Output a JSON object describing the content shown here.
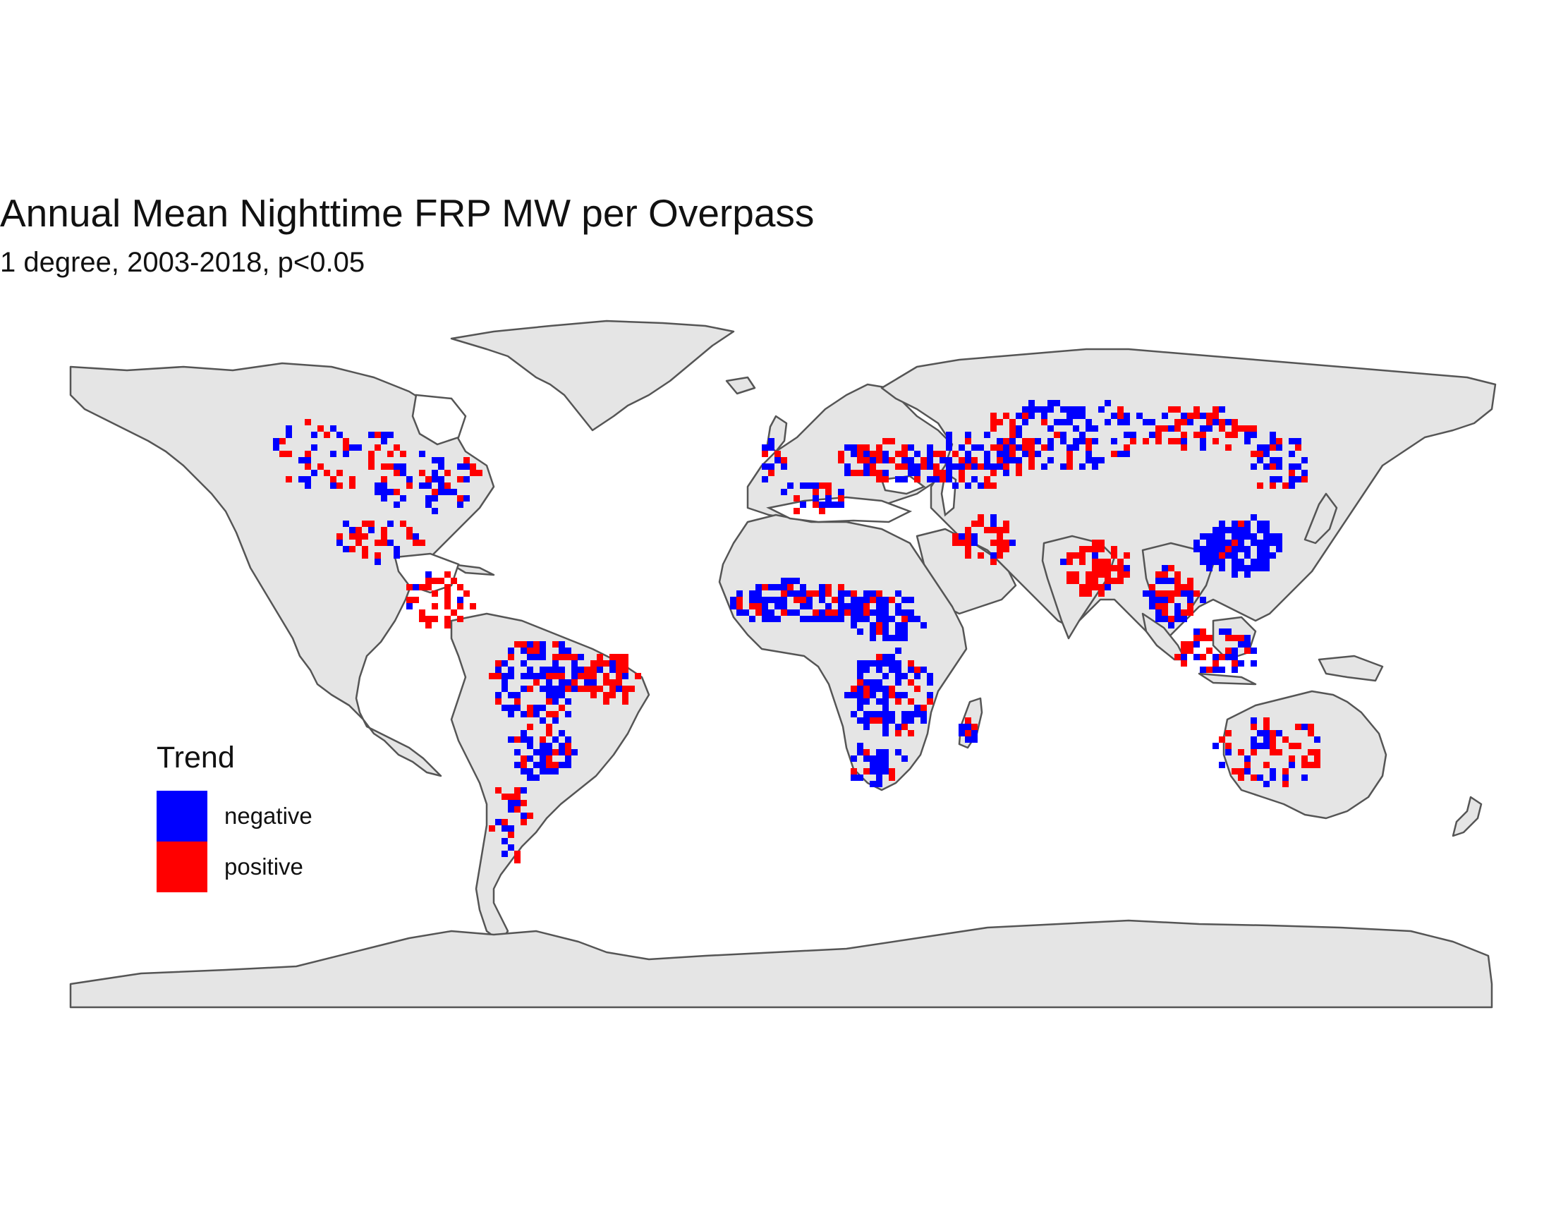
{
  "title": "Annual Mean Nighttime FRP MW per Overpass",
  "subtitle": "1 degree, 2003-2018, p<0.05",
  "legend": {
    "title": "Trend",
    "items": [
      {
        "label": "negative",
        "color": "#0000ff"
      },
      {
        "label": "positive",
        "color": "#ff0000"
      }
    ]
  },
  "colors": {
    "land": "#e5e5e5",
    "border": "#555555",
    "background": "#ffffff"
  }
}
